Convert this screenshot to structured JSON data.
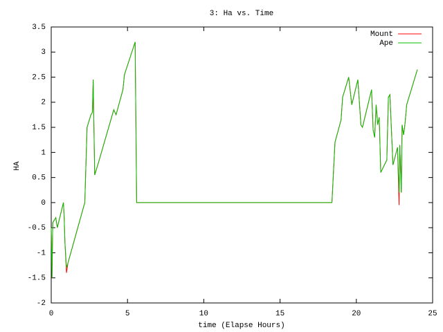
{
  "chart_data": {
    "type": "line",
    "title": "3: Ha vs. Time",
    "x_label": "time (Elapse Hours)",
    "y_label": "HA",
    "x": [
      0,
      0.05,
      0.1,
      0.3,
      0.4,
      0.8,
      0.85,
      0.9,
      1.0,
      1.1,
      2.2,
      2.35,
      2.6,
      2.7,
      2.75,
      2.85,
      3.1,
      4.1,
      4.25,
      4.7,
      4.8,
      5.5,
      5.55,
      5.6,
      18.4,
      18.6,
      19.0,
      19.1,
      19.5,
      19.7,
      20.1,
      20.3,
      20.4,
      21.0,
      21.1,
      21.2,
      21.3,
      21.4,
      21.5,
      21.6,
      22.0,
      22.1,
      22.2,
      22.4,
      22.7,
      22.8,
      22.85,
      22.95,
      23.0,
      23.1,
      23.2,
      23.3,
      24.0
    ],
    "series": [
      {
        "name": "Mount",
        "color": "#ff0000",
        "values": [
          -0.5,
          -1.5,
          -0.4,
          -0.3,
          -0.5,
          0,
          -0.3,
          -0.8,
          -1.4,
          -1.2,
          0,
          1.5,
          1.75,
          1.8,
          2.45,
          0.55,
          0.8,
          1.85,
          1.75,
          2.25,
          2.55,
          3.2,
          1.6,
          0,
          0,
          1.2,
          1.65,
          2.1,
          2.5,
          1.95,
          2.45,
          1.55,
          1.5,
          2.25,
          1.45,
          1.3,
          1.95,
          1.55,
          1.7,
          0.6,
          0.85,
          2.1,
          2.15,
          0.75,
          1.1,
          -0.05,
          1.15,
          0.2,
          1.55,
          1.35,
          1.6,
          1.95,
          2.65
        ]
      },
      {
        "name": "Ape",
        "color": "#00c000",
        "values": [
          -0.5,
          -1.5,
          -0.4,
          -0.3,
          -0.5,
          0,
          -0.3,
          -0.8,
          -1.3,
          -1.2,
          0,
          1.5,
          1.75,
          1.8,
          2.45,
          0.55,
          0.8,
          1.85,
          1.75,
          2.25,
          2.55,
          3.2,
          1.6,
          0,
          0,
          1.2,
          1.65,
          2.1,
          2.5,
          1.95,
          2.45,
          1.55,
          1.5,
          2.25,
          1.45,
          1.3,
          1.95,
          1.55,
          1.7,
          0.6,
          0.85,
          2.1,
          2.15,
          0.75,
          1.1,
          0.2,
          1.15,
          0.2,
          1.55,
          1.35,
          1.6,
          1.95,
          2.65
        ]
      }
    ],
    "xlim": [
      0,
      25
    ],
    "xticks": [
      0,
      5,
      10,
      15,
      20,
      25
    ],
    "ylim": [
      -2,
      3.5
    ],
    "yticks": [
      -2,
      -1.5,
      -1,
      -0.5,
      0,
      0.5,
      1,
      1.5,
      2,
      2.5,
      3,
      3.5
    ],
    "legend": "top-right"
  }
}
